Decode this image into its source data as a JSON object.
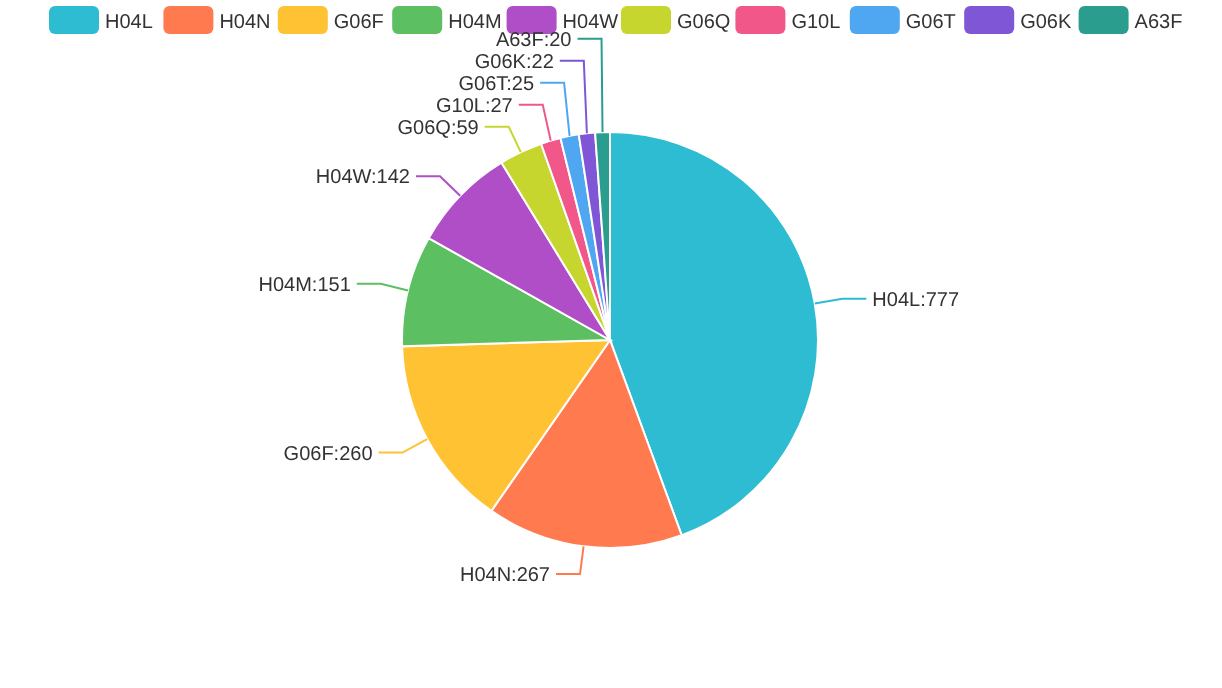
{
  "chart_data": {
    "type": "pie",
    "categories": [
      "H04L",
      "H04N",
      "G06F",
      "H04M",
      "H04W",
      "G06Q",
      "G10L",
      "G06T",
      "G06K",
      "A63F"
    ],
    "values": [
      777,
      267,
      260,
      151,
      142,
      59,
      27,
      25,
      22,
      20
    ],
    "colors": [
      "#2dbcd2",
      "#ff7a4f",
      "#ffc233",
      "#5cbf61",
      "#b04ec7",
      "#c6d62f",
      "#f2578a",
      "#4fa7f2",
      "#7e56d6",
      "#2a9d8f"
    ],
    "value_labels": [
      "H04L:777",
      "H04N:267",
      "G06F:260",
      "H04M:151",
      "H04W:142",
      "G06Q:59",
      "G10L:27",
      "G06T:25",
      "G06K:22",
      "A63F:20"
    ],
    "legend": "top"
  }
}
